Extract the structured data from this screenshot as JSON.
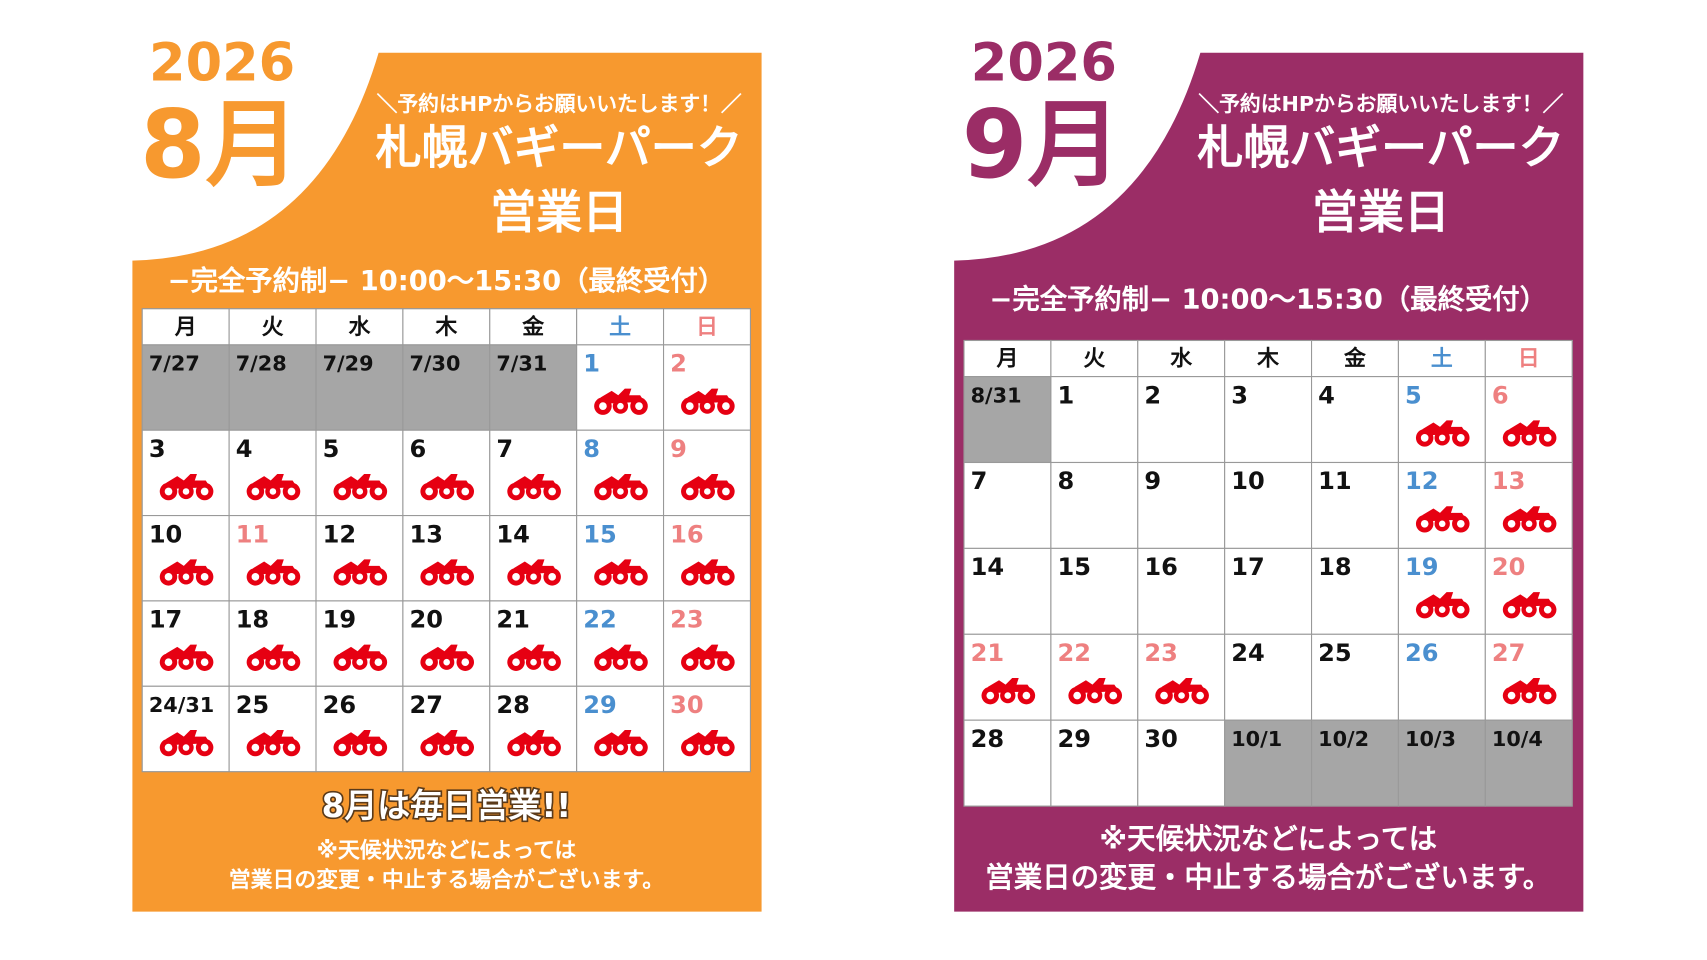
{
  "posters": [
    {
      "year": "2026",
      "month": "8月",
      "color": "#f7992f",
      "notice": "＼予約はHPからお願いいたします！／",
      "title": "札幌バギーパーク",
      "subtitle": "営業日",
      "hours": "−完全予約制−  10:00〜15:30（最終受付）",
      "weekdays": [
        "月",
        "火",
        "水",
        "木",
        "金",
        "土",
        "日"
      ],
      "weeks": [
        [
          {
            "day": "7/27",
            "out": true
          },
          {
            "day": "7/28",
            "out": true
          },
          {
            "day": "7/29",
            "out": true
          },
          {
            "day": "7/30",
            "out": true
          },
          {
            "day": "7/31",
            "out": true
          },
          {
            "day": "1",
            "kind": "sat",
            "open": true
          },
          {
            "day": "2",
            "kind": "hol",
            "open": true
          }
        ],
        [
          {
            "day": "3",
            "open": true
          },
          {
            "day": "4",
            "open": true
          },
          {
            "day": "5",
            "open": true
          },
          {
            "day": "6",
            "open": true
          },
          {
            "day": "7",
            "open": true
          },
          {
            "day": "8",
            "kind": "sat",
            "open": true
          },
          {
            "day": "9",
            "kind": "hol",
            "open": true
          }
        ],
        [
          {
            "day": "10",
            "open": true
          },
          {
            "day": "11",
            "kind": "hol",
            "open": true
          },
          {
            "day": "12",
            "open": true
          },
          {
            "day": "13",
            "open": true
          },
          {
            "day": "14",
            "open": true
          },
          {
            "day": "15",
            "kind": "sat",
            "open": true
          },
          {
            "day": "16",
            "kind": "hol",
            "open": true
          }
        ],
        [
          {
            "day": "17",
            "open": true
          },
          {
            "day": "18",
            "open": true
          },
          {
            "day": "19",
            "open": true
          },
          {
            "day": "20",
            "open": true
          },
          {
            "day": "21",
            "open": true
          },
          {
            "day": "22",
            "kind": "sat",
            "open": true
          },
          {
            "day": "23",
            "kind": "hol",
            "open": true
          }
        ],
        [
          {
            "day": "24/31",
            "open": true
          },
          {
            "day": "25",
            "open": true
          },
          {
            "day": "26",
            "open": true
          },
          {
            "day": "27",
            "open": true
          },
          {
            "day": "28",
            "open": true
          },
          {
            "day": "29",
            "kind": "sat",
            "open": true
          },
          {
            "day": "30",
            "kind": "hol",
            "open": true
          }
        ]
      ],
      "highlight": "8月は毎日営業!!",
      "footer": [
        "※天候状況などによっては",
        "営業日の変更・中止する場合がございます。"
      ]
    },
    {
      "year": "2026",
      "month": "9月",
      "color": "#9b2d66",
      "notice": "＼予約はHPからお願いいたします！／",
      "title": "札幌バギーパーク",
      "subtitle": "営業日",
      "hours": "−完全予約制−  10:00〜15:30（最終受付）",
      "weekdays": [
        "月",
        "火",
        "水",
        "木",
        "金",
        "土",
        "日"
      ],
      "weeks": [
        [
          {
            "day": "8/31",
            "out": true
          },
          {
            "day": "1"
          },
          {
            "day": "2"
          },
          {
            "day": "3"
          },
          {
            "day": "4"
          },
          {
            "day": "5",
            "kind": "sat",
            "open": true
          },
          {
            "day": "6",
            "kind": "hol",
            "open": true
          }
        ],
        [
          {
            "day": "7"
          },
          {
            "day": "8"
          },
          {
            "day": "9"
          },
          {
            "day": "10"
          },
          {
            "day": "11"
          },
          {
            "day": "12",
            "kind": "sat",
            "open": true
          },
          {
            "day": "13",
            "kind": "hol",
            "open": true
          }
        ],
        [
          {
            "day": "14"
          },
          {
            "day": "15"
          },
          {
            "day": "16"
          },
          {
            "day": "17"
          },
          {
            "day": "18"
          },
          {
            "day": "19",
            "kind": "sat",
            "open": true
          },
          {
            "day": "20",
            "kind": "hol",
            "open": true
          }
        ],
        [
          {
            "day": "21",
            "kind": "hol",
            "open": true
          },
          {
            "day": "22",
            "kind": "hol",
            "open": true
          },
          {
            "day": "23",
            "kind": "hol",
            "open": true
          },
          {
            "day": "24"
          },
          {
            "day": "25"
          },
          {
            "day": "26",
            "kind": "sat"
          },
          {
            "day": "27",
            "kind": "hol",
            "open": true
          }
        ],
        [
          {
            "day": "28"
          },
          {
            "day": "29"
          },
          {
            "day": "30"
          },
          {
            "day": "10/1",
            "out": true
          },
          {
            "day": "10/2",
            "out": true
          },
          {
            "day": "10/3",
            "out": true
          },
          {
            "day": "10/4",
            "out": true
          }
        ]
      ],
      "footer": [
        "※天候状況などによっては",
        "営業日の変更・中止する場合がございます。"
      ]
    }
  ]
}
